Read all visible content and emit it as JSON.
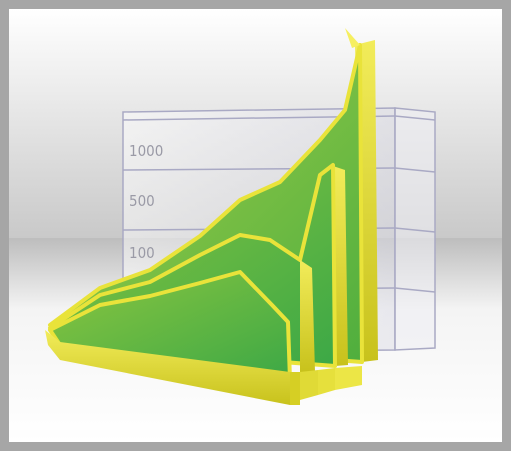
{
  "axis_labels": [
    "1000",
    "500",
    "100"
  ]
}
